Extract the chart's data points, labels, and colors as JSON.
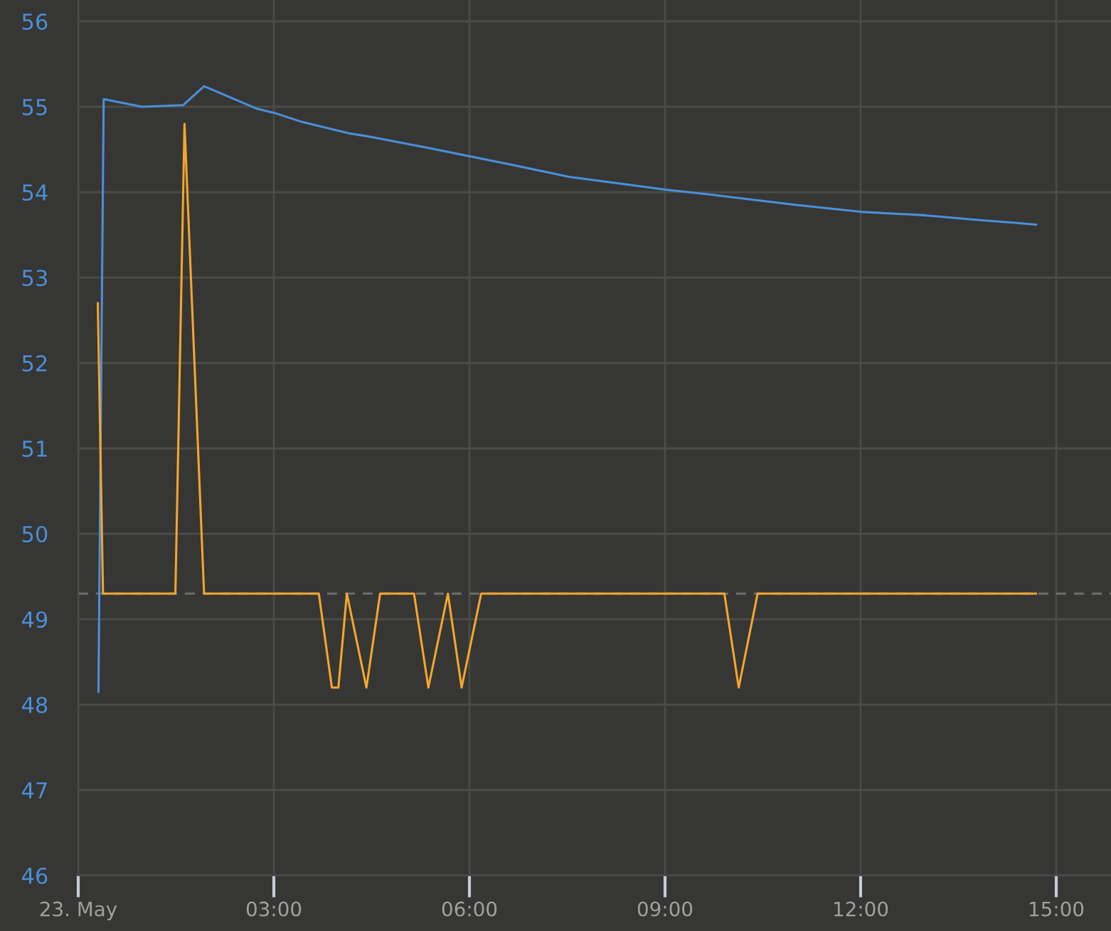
{
  "chart_data": {
    "type": "line",
    "xlim": [
      0,
      15.84
    ],
    "xticks": [
      {
        "value": 0,
        "label": "23. May"
      },
      {
        "value": 3,
        "label": "03:00"
      },
      {
        "value": 6,
        "label": "06:00"
      },
      {
        "value": 9,
        "label": "09:00"
      },
      {
        "value": 12,
        "label": "12:00"
      },
      {
        "value": 15,
        "label": "15:00"
      }
    ],
    "ylim": [
      46,
      56.25
    ],
    "yticks": [
      46,
      47,
      48,
      49,
      50,
      51,
      52,
      53,
      54,
      55,
      56
    ],
    "grid": true,
    "ref_lines": [
      {
        "axis": "y",
        "value": 49.3,
        "color": "#6f6f6d",
        "line_style": "dashed"
      }
    ],
    "series": [
      {
        "color": "#4a90d9",
        "x": [
          0.31,
          0.39,
          0.98,
          1.61,
          1.93,
          2.73,
          3.0,
          3.4,
          4.15,
          4.47,
          5.35,
          6.0,
          6.65,
          7.53,
          9.01,
          9.71,
          11.02,
          12.0,
          12.98,
          13.86,
          14.4,
          14.69
        ],
        "values": [
          48.15,
          55.09,
          55.0,
          55.02,
          55.24,
          54.98,
          54.93,
          54.83,
          54.69,
          54.65,
          54.52,
          54.42,
          54.32,
          54.18,
          54.03,
          53.97,
          53.85,
          53.77,
          53.73,
          53.67,
          53.64,
          53.62
        ]
      },
      {
        "color": "#f5a52e",
        "x": [
          0.3,
          0.38,
          1.49,
          1.63,
          1.93,
          3.69,
          3.89,
          3.99,
          4.12,
          4.42,
          4.63,
          5.15,
          5.37,
          5.67,
          5.88,
          6.18,
          9.91,
          10.13,
          10.42,
          14.69
        ],
        "values": [
          52.7,
          49.3,
          49.3,
          54.8,
          49.3,
          49.3,
          48.2,
          48.2,
          49.3,
          48.2,
          49.3,
          49.3,
          48.2,
          49.3,
          48.2,
          49.3,
          49.3,
          48.2,
          49.3,
          49.3
        ]
      }
    ]
  }
}
